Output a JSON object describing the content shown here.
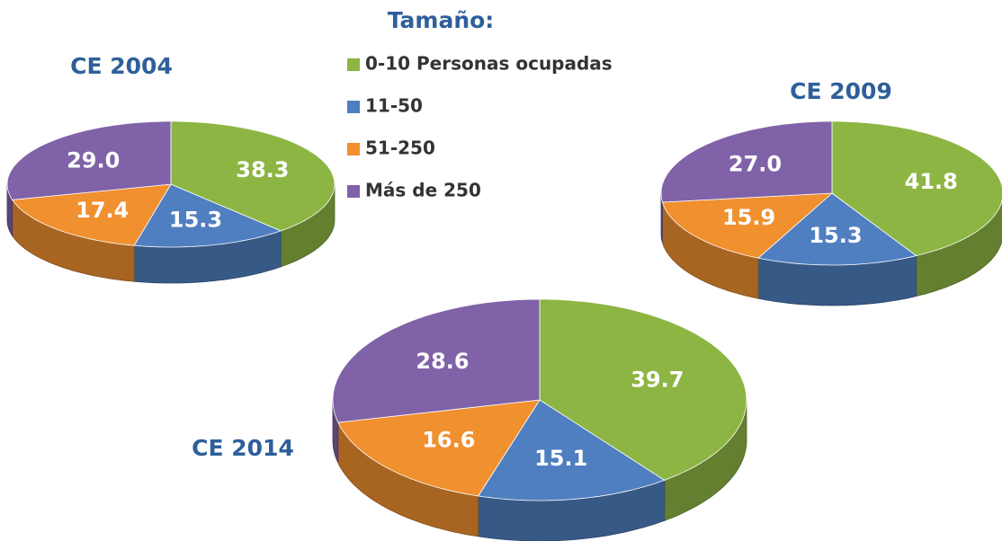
{
  "legend": {
    "title": "Tamaño:",
    "categories": [
      "0-10 Personas ocupadas",
      "11-50",
      "51-250",
      "Más de 250"
    ],
    "colors": [
      "#8db543",
      "#4f7fc0",
      "#f0902f",
      "#8062a8"
    ]
  },
  "chart_data": [
    {
      "type": "pie",
      "title": "CE 2004",
      "values": [
        38.3,
        15.3,
        17.4,
        29
      ],
      "value_labels": [
        "38.3",
        "15.3",
        "17.4",
        "29.0"
      ]
    },
    {
      "type": "pie",
      "title": "CE 2009",
      "values": [
        41.8,
        15.3,
        15.9,
        27
      ],
      "value_labels": [
        "41.8",
        "15.3",
        "15.9",
        "27.0"
      ]
    },
    {
      "type": "pie",
      "title": "CE 2014",
      "values": [
        39.7,
        15.1,
        16.6,
        28.6
      ],
      "value_labels": [
        "39.7",
        "15.1",
        "16.6",
        "28.6"
      ]
    }
  ]
}
